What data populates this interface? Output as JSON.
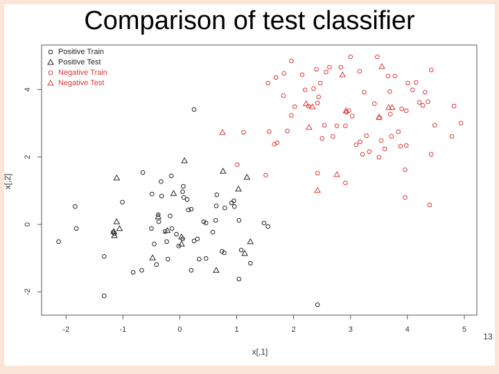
{
  "page_number": "13",
  "chart_data": {
    "type": "scatter",
    "title": "Comparison of test classifier",
    "x_label": "x[,1]",
    "y_label": "x[,2]",
    "xlim": [
      -2.43,
      5.22
    ],
    "ylim": [
      -2.69,
      5.32
    ],
    "xticks": [
      -2,
      -1,
      0,
      1,
      2,
      3,
      4,
      5
    ],
    "yticks": [
      -2,
      0,
      2,
      4
    ],
    "legend": "top-left",
    "series": [
      {
        "name": "Positive Train",
        "color": "#222222",
        "marker": "circle",
        "x": [
          -2.13,
          -1.84,
          -1.82,
          -1.33,
          -1.33,
          -1.17,
          -1.15,
          -1.01,
          -0.65,
          -0.67,
          -0.49,
          -0.5,
          -0.33,
          -0.32,
          -0.26,
          -0.41,
          -0.38,
          -0.37,
          -0.21,
          -0.15,
          -0.17,
          -0.14,
          0.06,
          0.05,
          0.07,
          0.13,
          0.15,
          0.2,
          0.2,
          0.25,
          0.31,
          0.34,
          0.42,
          0.46,
          0.05,
          -0.02,
          -0.23,
          -0.45,
          -0.06,
          0.25,
          0.63,
          0.65,
          0.64,
          0.74,
          0.78,
          0.79,
          0.91,
          0.96,
          0.95,
          1.04,
          1.04,
          1.08,
          1.24,
          1.48,
          1.55,
          -0.82,
          0.46,
          0.58,
          2.42
        ],
        "y": [
          -0.51,
          0.53,
          -0.12,
          -0.95,
          -2.12,
          -0.23,
          -0.27,
          0.66,
          1.54,
          -1.36,
          0.9,
          -0.12,
          1.27,
          0.84,
          -0.21,
          -1.19,
          0.29,
          0.08,
          -1.03,
          1.44,
          0.25,
          -0.12,
          1.13,
          0.97,
          0.8,
          0.74,
          0.43,
          0.45,
          -1.36,
          -0.49,
          -0.43,
          -1.03,
          0.08,
          0.04,
          -0.43,
          -0.64,
          -0.51,
          -0.58,
          -0.29,
          3.41,
          0.12,
          0.88,
          0.55,
          -0.8,
          -0.84,
          0.49,
          0.64,
          0.53,
          0.7,
          -1.62,
          0.12,
          -0.76,
          -1.15,
          0.04,
          -0.06,
          -1.42,
          -1.01,
          -0.23,
          -2.38
        ]
      },
      {
        "name": "Positive Test",
        "color": "#222222",
        "marker": "triangle",
        "x": [
          -1.11,
          -1.11,
          -1.06,
          -1.15,
          -1.16,
          -0.48,
          -0.38,
          -0.11,
          0.03,
          0.03,
          0.08,
          0.76,
          0.64,
          1.03,
          1.18,
          1.14,
          1.24,
          -0.22
        ],
        "y": [
          1.38,
          0.08,
          -0.12,
          -0.33,
          -0.21,
          -0.99,
          0.23,
          0.92,
          -0.37,
          -0.58,
          1.89,
          1.58,
          -1.36,
          1.05,
          1.4,
          -0.86,
          -0.51,
          -0.18
        ]
      },
      {
        "name": "Negative Train",
        "color": "#d9383a",
        "marker": "circle",
        "x": [
          1.55,
          1.69,
          1.83,
          1.96,
          2.15,
          2.4,
          2.63,
          2.83,
          3.0,
          3.47,
          1.57,
          1.71,
          1.66,
          1.89,
          2.02,
          1.82,
          2.2,
          2.26,
          2.35,
          2.44,
          2.47,
          2.54,
          2.69,
          2.76,
          2.91,
          2.93,
          2.97,
          3.03,
          3.1,
          3.17,
          3.21,
          3.33,
          3.42,
          3.5,
          3.6,
          3.66,
          3.7,
          3.72,
          3.78,
          3.84,
          3.88,
          3.9,
          3.98,
          4.01,
          4.09,
          4.15,
          4.21,
          4.31,
          4.36,
          4.42,
          4.48,
          4.42,
          4.39,
          3.96,
          3.96,
          3.51,
          3.24,
          2.5,
          1.96,
          2.42,
          2.57,
          1.01,
          1.12,
          1.51,
          2.91,
          3.54,
          4.27,
          4.82,
          4.94,
          4.78,
          3.98,
          3.69,
          3.16,
          2.42,
          3.28
        ],
        "y": [
          4.19,
          4.36,
          4.48,
          4.85,
          4.44,
          4.6,
          4.66,
          4.66,
          4.97,
          4.97,
          2.75,
          2.42,
          2.38,
          2.77,
          3.49,
          3.82,
          3.99,
          3.51,
          4.03,
          3.78,
          4.19,
          2.94,
          2.61,
          2.92,
          2.92,
          3.33,
          3.37,
          3.21,
          2.36,
          2.45,
          2.08,
          2.16,
          3.58,
          1.99,
          2.24,
          4.4,
          3.27,
          2.61,
          4.4,
          2.75,
          2.32,
          3.43,
          3.37,
          4.19,
          3.99,
          4.21,
          3.62,
          3.92,
          3.64,
          4.58,
          2.94,
          2.08,
          0.58,
          0.8,
          1.62,
          3.16,
          3.92,
          2.55,
          3.23,
          3.6,
          4.52,
          1.77,
          2.73,
          1.46,
          1.23,
          2.49,
          3.53,
          3.51,
          3.0,
          2.61,
          2.34,
          3.94,
          4.54,
          1.52,
          2.63
        ]
      },
      {
        "name": "Negative Test",
        "color": "#d9383a",
        "marker": "triangle",
        "x": [
          0.75,
          2.22,
          2.33,
          2.27,
          2.42,
          2.76,
          2.86,
          2.92,
          3.5,
          3.55,
          3.67,
          3.73
        ],
        "y": [
          2.73,
          3.58,
          3.49,
          2.88,
          1.01,
          1.48,
          4.44,
          3.37,
          3.18,
          4.68,
          3.47,
          3.47
        ]
      }
    ]
  }
}
